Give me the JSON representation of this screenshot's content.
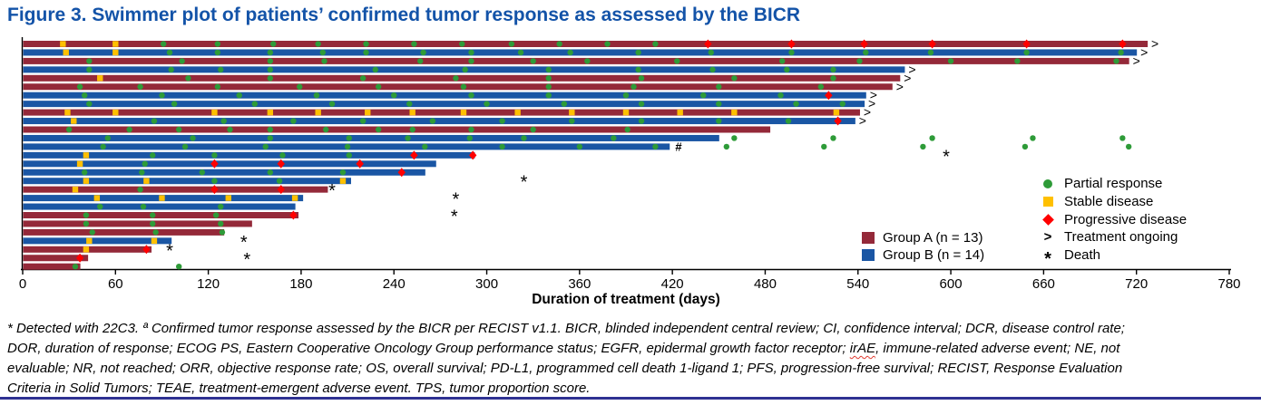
{
  "title": "Figure 3. Swimmer plot of patients’ confirmed tumor response as assessed by the BICR",
  "colors": {
    "title_blue": "#1353A8",
    "group_a_red": "#942939",
    "group_b_blue": "#1A56A4",
    "pr_green": "#2E9B38",
    "sd_yellow": "#FFC000",
    "pd_red": "#FF0000",
    "axis_black": "#000000",
    "rule_navy": "#2E3192"
  },
  "legend": {
    "items": [
      {
        "label": "Partial response",
        "icon": "pr"
      },
      {
        "label": "Stable disease",
        "icon": "sd"
      },
      {
        "label": "Progressive disease",
        "icon": "pd"
      },
      {
        "label": "Treatment ongoing",
        "icon": "ongoing",
        "glyph": ">"
      },
      {
        "label": "Death",
        "icon": "death",
        "glyph": "*"
      }
    ],
    "groups": [
      {
        "label": "Group A (n = 13)"
      },
      {
        "label": "Group B (n = 14)"
      }
    ]
  },
  "footnote": {
    "lines": [
      "* Detected with 22C3. ª Confirmed tumor response assessed by the BICR per RECIST v1.1. BICR, blinded independent central review; CI, confidence interval; DCR, disease control rate;",
      "DOR, duration of response; ECOG PS, Eastern Cooperative Oncology Group performance status; EGFR, epidermal growth factor receptor; irAE, immune-related adverse event; NE, not",
      "evaluable; NR, not reached; ORR, objective response rate; OS, overall survival; PD-L1, programmed cell death 1-ligand 1; PFS, progression-free survival; RECIST, Response Evaluation",
      "Criteria in Solid Tumors; TEAE, treatment-emergent adverse event. TPS, tumor proportion score."
    ]
  },
  "chart_data": {
    "type": "swimmer",
    "xlabel": "Duration of treatment (days)",
    "xlim": [
      0,
      780
    ],
    "x_ticks": [
      0,
      60,
      120,
      180,
      240,
      300,
      360,
      420,
      480,
      540,
      600,
      660,
      720,
      780
    ],
    "grid": false,
    "marker_types": {
      "pr": "Partial response",
      "sd": "Stable disease",
      "pd": "Progressive disease"
    },
    "end_symbols": {
      "ongoing": ">",
      "death": "*",
      "hash": "#"
    },
    "patients": [
      {
        "group": "A",
        "days": 727,
        "ongoing": true,
        "markers": [
          [
            "sd",
            26
          ],
          [
            "sd",
            60
          ],
          [
            "pr",
            91
          ],
          [
            "pr",
            126
          ],
          [
            "pr",
            162
          ],
          [
            "pr",
            191
          ],
          [
            "pr",
            222
          ],
          [
            "pr",
            253
          ],
          [
            "pr",
            284
          ],
          [
            "pr",
            316
          ],
          [
            "pr",
            347
          ],
          [
            "pr",
            378
          ],
          [
            "pr",
            409
          ],
          [
            "pd",
            443
          ],
          [
            "pd",
            497
          ],
          [
            "pd",
            544
          ],
          [
            "pd",
            588
          ],
          [
            "pd",
            649
          ],
          [
            "pd",
            711
          ]
        ]
      },
      {
        "group": "B",
        "days": 720,
        "ongoing": true,
        "markers": [
          [
            "sd",
            28
          ],
          [
            "sd",
            60
          ],
          [
            "pr",
            95
          ],
          [
            "pr",
            126
          ],
          [
            "pr",
            160
          ],
          [
            "pr",
            194
          ],
          [
            "pr",
            222
          ],
          [
            "pr",
            259
          ],
          [
            "pr",
            290
          ],
          [
            "pr",
            322
          ],
          [
            "pr",
            354
          ],
          [
            "pr",
            398
          ],
          [
            "pr",
            445
          ],
          [
            "pr",
            497
          ],
          [
            "pr",
            545
          ],
          [
            "pr",
            587
          ],
          [
            "pr",
            649
          ],
          [
            "pr",
            710
          ]
        ]
      },
      {
        "group": "A",
        "days": 715,
        "ongoing": true,
        "markers": [
          [
            "pr",
            43
          ],
          [
            "pr",
            103
          ],
          [
            "pr",
            160
          ],
          [
            "pr",
            195
          ],
          [
            "pr",
            257
          ],
          [
            "pr",
            290
          ],
          [
            "pr",
            330
          ],
          [
            "pr",
            365
          ],
          [
            "pr",
            423
          ],
          [
            "pr",
            491
          ],
          [
            "pr",
            541
          ],
          [
            "pr",
            600
          ],
          [
            "pr",
            643
          ],
          [
            "pr",
            707
          ]
        ]
      },
      {
        "group": "B",
        "days": 570,
        "ongoing": true,
        "markers": [
          [
            "pr",
            43
          ],
          [
            "pr",
            96
          ],
          [
            "pr",
            128
          ],
          [
            "pr",
            160
          ],
          [
            "pr",
            228
          ],
          [
            "pr",
            286
          ],
          [
            "pr",
            340
          ],
          [
            "pr",
            398
          ],
          [
            "pr",
            446
          ],
          [
            "pr",
            494
          ],
          [
            "pr",
            524
          ]
        ]
      },
      {
        "group": "A",
        "days": 567,
        "ongoing": true,
        "markers": [
          [
            "sd",
            50
          ],
          [
            "pr",
            107
          ],
          [
            "pr",
            160
          ],
          [
            "pr",
            220
          ],
          [
            "pr",
            280
          ],
          [
            "pr",
            340
          ],
          [
            "pr",
            400
          ],
          [
            "pr",
            460
          ],
          [
            "pr",
            524
          ]
        ]
      },
      {
        "group": "A",
        "days": 562,
        "ongoing": true,
        "markers": [
          [
            "pr",
            37
          ],
          [
            "pr",
            76
          ],
          [
            "pr",
            126
          ],
          [
            "pr",
            179
          ],
          [
            "pr",
            230
          ],
          [
            "pr",
            285
          ],
          [
            "pr",
            340
          ],
          [
            "pr",
            395
          ],
          [
            "pr",
            450
          ],
          [
            "pr",
            516
          ]
        ]
      },
      {
        "group": "B",
        "days": 545,
        "ongoing": true,
        "markers": [
          [
            "pr",
            40
          ],
          [
            "pr",
            90
          ],
          [
            "pr",
            140
          ],
          [
            "pr",
            190
          ],
          [
            "pr",
            240
          ],
          [
            "pr",
            290
          ],
          [
            "pr",
            340
          ],
          [
            "pr",
            390
          ],
          [
            "pr",
            440
          ],
          [
            "pr",
            490
          ],
          [
            "pd",
            521
          ]
        ]
      },
      {
        "group": "B",
        "days": 544,
        "ongoing": true,
        "markers": [
          [
            "pr",
            43
          ],
          [
            "pr",
            98
          ],
          [
            "pr",
            150
          ],
          [
            "pr",
            200
          ],
          [
            "pr",
            250
          ],
          [
            "pr",
            300
          ],
          [
            "pr",
            350
          ],
          [
            "pr",
            400
          ],
          [
            "pr",
            450
          ],
          [
            "pr",
            500
          ],
          [
            "pr",
            530
          ]
        ]
      },
      {
        "group": "A",
        "days": 541,
        "ongoing": true,
        "markers": [
          [
            "sd",
            29
          ],
          [
            "sd",
            60
          ],
          [
            "sd",
            124
          ],
          [
            "sd",
            160
          ],
          [
            "sd",
            191
          ],
          [
            "sd",
            223
          ],
          [
            "sd",
            252
          ],
          [
            "sd",
            285
          ],
          [
            "sd",
            320
          ],
          [
            "sd",
            355
          ],
          [
            "sd",
            390
          ],
          [
            "sd",
            425
          ],
          [
            "sd",
            460
          ],
          [
            "sd",
            526
          ]
        ]
      },
      {
        "group": "B",
        "days": 538,
        "ongoing": true,
        "markers": [
          [
            "sd",
            33
          ],
          [
            "pr",
            85
          ],
          [
            "pr",
            130
          ],
          [
            "pr",
            175
          ],
          [
            "pr",
            220
          ],
          [
            "pr",
            265
          ],
          [
            "pr",
            310
          ],
          [
            "pr",
            355
          ],
          [
            "pr",
            400
          ],
          [
            "pr",
            450
          ],
          [
            "pr",
            495
          ],
          [
            "pd",
            527
          ]
        ]
      },
      {
        "group": "A",
        "days": 483,
        "markers": [
          [
            "pr",
            30
          ],
          [
            "pr",
            69
          ],
          [
            "pr",
            101
          ],
          [
            "pr",
            134
          ],
          [
            "pr",
            160
          ],
          [
            "pr",
            196
          ],
          [
            "pr",
            230
          ],
          [
            "pr",
            252
          ],
          [
            "pr",
            290
          ],
          [
            "pr",
            330
          ],
          [
            "pr",
            391
          ]
        ]
      },
      {
        "group": "B",
        "days": 450,
        "markers": [
          [
            "pr",
            55
          ],
          [
            "pr",
            110
          ],
          [
            "pr",
            160
          ],
          [
            "pr",
            211
          ],
          [
            "pr",
            249
          ],
          [
            "pr",
            289
          ],
          [
            "pr",
            324
          ],
          [
            "pr",
            382
          ]
        ],
        "post_pr": [
          460,
          524,
          588,
          653,
          711
        ]
      },
      {
        "group": "B",
        "days": 418,
        "hash_day": 424,
        "markers": [
          [
            "pr",
            52
          ],
          [
            "pr",
            105
          ],
          [
            "pr",
            157
          ],
          [
            "pr",
            210
          ],
          [
            "pr",
            260
          ],
          [
            "pr",
            310
          ],
          [
            "pr",
            360
          ],
          [
            "pr",
            409
          ]
        ],
        "post_pr": [
          455,
          518,
          582,
          648,
          715
        ]
      },
      {
        "group": "B",
        "days": 292,
        "death_day": 597,
        "markers": [
          [
            "sd",
            41
          ],
          [
            "pr",
            84
          ],
          [
            "pr",
            124
          ],
          [
            "pr",
            168
          ],
          [
            "pr",
            211
          ],
          [
            "pd",
            253
          ],
          [
            "pd",
            291
          ]
        ]
      },
      {
        "group": "B",
        "days": 267,
        "markers": [
          [
            "sd",
            37
          ],
          [
            "pr",
            79
          ],
          [
            "pd",
            124
          ],
          [
            "pd",
            167
          ],
          [
            "pd",
            218
          ]
        ]
      },
      {
        "group": "B",
        "days": 260,
        "markers": [
          [
            "pr",
            40
          ],
          [
            "pr",
            77
          ],
          [
            "pr",
            116
          ],
          [
            "pr",
            160
          ],
          [
            "pr",
            207
          ],
          [
            "pd",
            245
          ]
        ]
      },
      {
        "group": "B",
        "days": 212,
        "death_day": 324,
        "markers": [
          [
            "sd",
            41
          ],
          [
            "sd",
            80
          ],
          [
            "pr",
            124
          ],
          [
            "pr",
            166
          ],
          [
            "sd",
            207
          ]
        ]
      },
      {
        "group": "A",
        "days": 197,
        "death_day": 200,
        "markers": [
          [
            "sd",
            34
          ],
          [
            "pr",
            76
          ],
          [
            "pd",
            124
          ],
          [
            "pd",
            167
          ]
        ]
      },
      {
        "group": "B",
        "days": 181,
        "death_day": 280,
        "markers": [
          [
            "sd",
            48
          ],
          [
            "sd",
            90
          ],
          [
            "sd",
            133
          ],
          [
            "sd",
            176
          ]
        ]
      },
      {
        "group": "B",
        "days": 176,
        "markers": [
          [
            "pr",
            50
          ],
          [
            "pr",
            78
          ],
          [
            "pr",
            128
          ]
        ]
      },
      {
        "group": "A",
        "days": 178,
        "death_day": 279,
        "markers": [
          [
            "pr",
            41
          ],
          [
            "pr",
            84
          ],
          [
            "pr",
            125
          ],
          [
            "pd",
            175
          ]
        ]
      },
      {
        "group": "A",
        "days": 148,
        "markers": [
          [
            "pr",
            41
          ],
          [
            "pr",
            84
          ],
          [
            "pr",
            128
          ]
        ]
      },
      {
        "group": "A",
        "days": 130,
        "markers": [
          [
            "pr",
            45
          ],
          [
            "pr",
            86
          ],
          [
            "pr",
            129
          ]
        ]
      },
      {
        "group": "B",
        "days": 96,
        "death_day": 143,
        "markers": [
          [
            "sd",
            43
          ],
          [
            "sd",
            85
          ]
        ]
      },
      {
        "group": "A",
        "days": 83,
        "death_day": 95,
        "markers": [
          [
            "sd",
            41
          ],
          [
            "pd",
            80
          ]
        ]
      },
      {
        "group": "A",
        "days": 42,
        "death_day": 145,
        "markers": [
          [
            "pd",
            37
          ]
        ]
      },
      {
        "group": "A",
        "days": 37,
        "markers": [
          [
            "pr",
            34
          ]
        ],
        "post_pr": [
          101
        ]
      }
    ]
  }
}
